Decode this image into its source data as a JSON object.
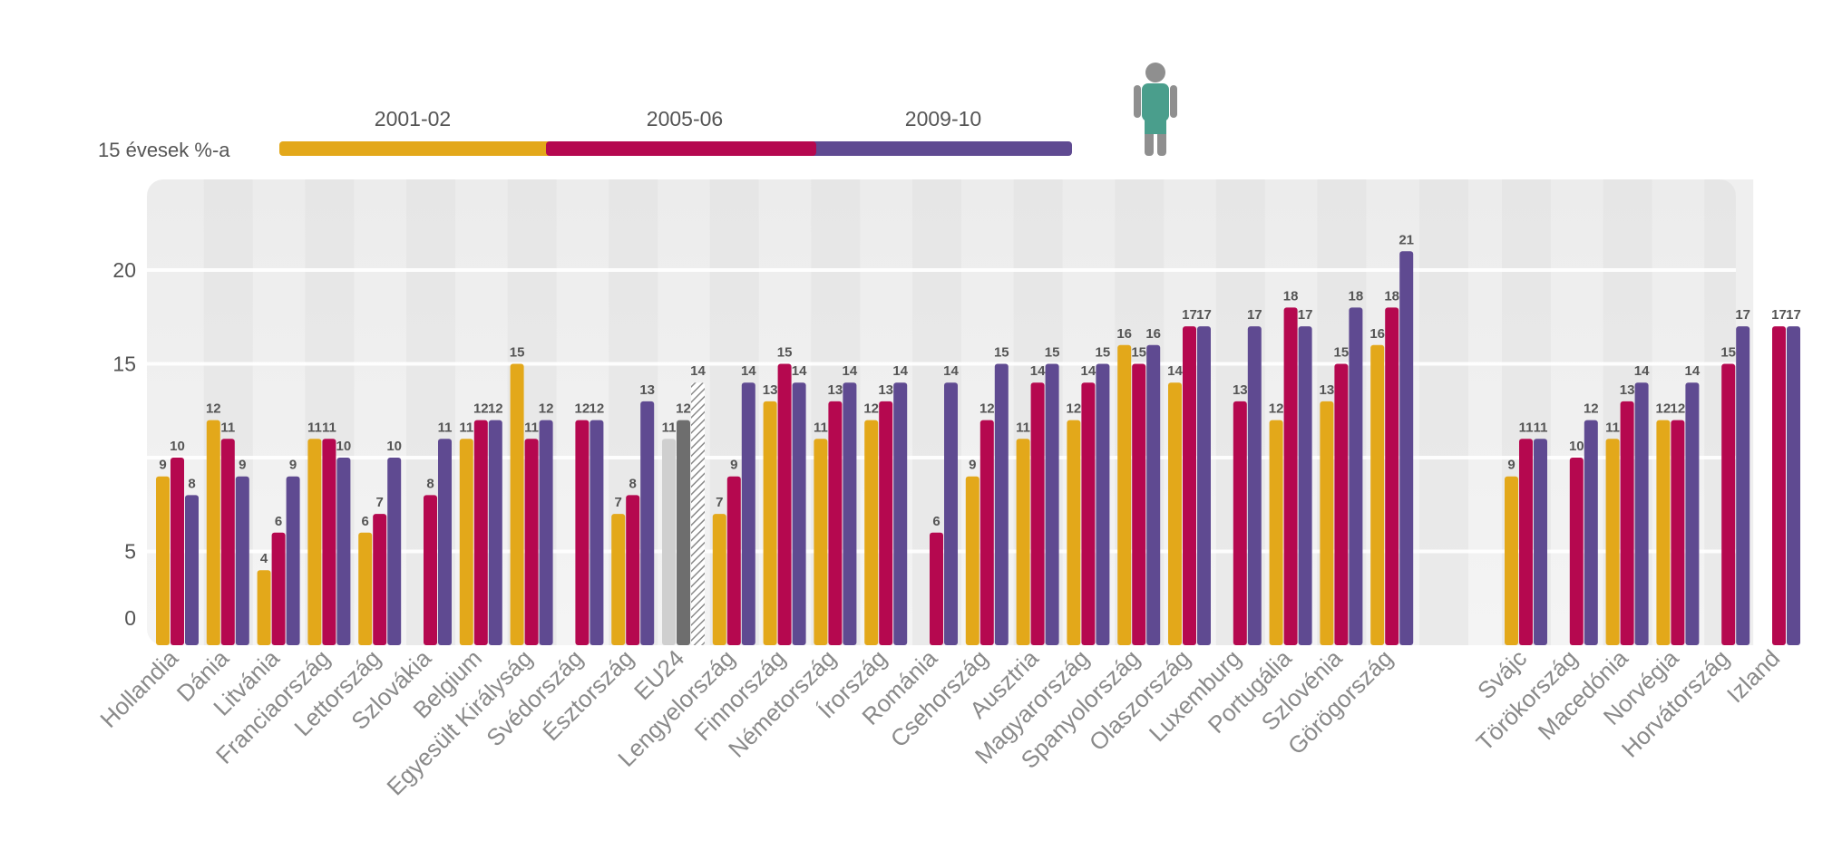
{
  "chart_data": {
    "type": "bar",
    "title": "",
    "ylabel": "15 évesek %-a",
    "xlabel": "",
    "ylim": [
      0,
      24
    ],
    "yticks": [
      0,
      5,
      15,
      20
    ],
    "categories": [
      "Hollandia",
      "Dánia",
      "Litvánia",
      "Franciaország",
      "Lettország",
      "Szlovákia",
      "Belgium",
      "Egyesült Királyság",
      "Svédország",
      "Észtország",
      "EU24",
      "Lengyelország",
      "Finnország",
      "Németország",
      "Írország",
      "Románia",
      "Csehország",
      "Ausztria",
      "Magyarország",
      "Spanyolország",
      "Olaszország",
      "Luxemburg",
      "Portugália",
      "Szlovénia",
      "Görögország",
      "Svájc",
      "Törökország",
      "Macedónia",
      "Norvégia",
      "Horvátország",
      "Izland"
    ],
    "series": [
      {
        "name": "2001-02",
        "color": "#E3A81A",
        "values": [
          9,
          12,
          4,
          11,
          6,
          null,
          11,
          15,
          null,
          7,
          11,
          7,
          13,
          11,
          12,
          null,
          9,
          11,
          12,
          16,
          14,
          null,
          12,
          13,
          16,
          9,
          null,
          11,
          12,
          null,
          null
        ]
      },
      {
        "name": "2005-06",
        "color": "#B5084F",
        "values": [
          10,
          11,
          6,
          11,
          7,
          8,
          12,
          11,
          12,
          8,
          12,
          9,
          15,
          13,
          13,
          6,
          12,
          14,
          14,
          15,
          17,
          13,
          18,
          15,
          18,
          11,
          10,
          13,
          12,
          15,
          17
        ]
      },
      {
        "name": "2009-10",
        "color": "#5F4A91",
        "values": [
          8,
          9,
          9,
          10,
          10,
          11,
          12,
          12,
          12,
          13,
          14,
          14,
          14,
          14,
          14,
          14,
          15,
          15,
          15,
          16,
          17,
          17,
          17,
          18,
          21,
          11,
          12,
          14,
          14,
          17,
          17
        ]
      }
    ],
    "highlight_category": "EU24",
    "highlight_colors": [
      "#CFCFCF",
      "#6E6E6E",
      "#8A8A8A"
    ],
    "group_gap_after": "Görögország",
    "legend": {
      "labels": [
        "2001-02",
        "2005-06",
        "2009-10"
      ],
      "placement": "top-left"
    }
  }
}
